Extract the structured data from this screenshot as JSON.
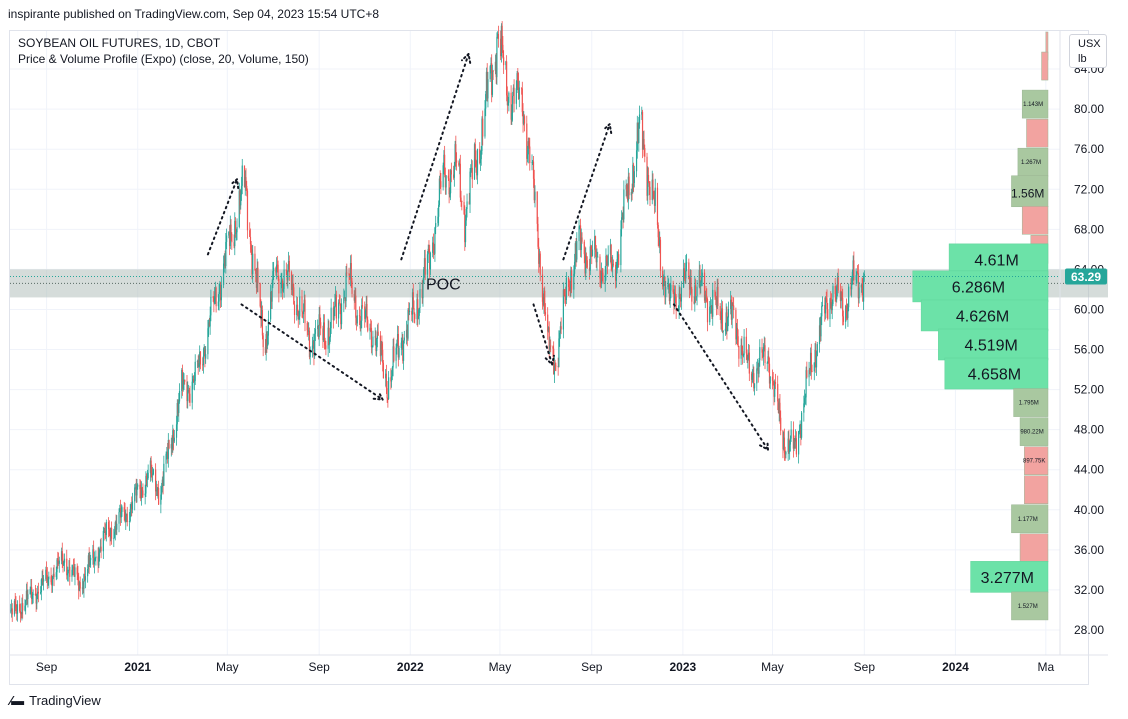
{
  "header": {
    "attribution": "inspirante published on TradingView.com, Sep 04, 2023 15:54 UTC+8"
  },
  "legend": {
    "symbol": "SOYBEAN OIL FUTURES, 1D, CBOT",
    "indicator": "Price & Volume Profile (Expo) (close, 20, Volume, 150)"
  },
  "price_scale": {
    "unit_line1": "USX",
    "unit_line2": "lb"
  },
  "footer": {
    "brand": "TradingView"
  },
  "colors": {
    "up_candle": "#26a69a",
    "down_candle": "#ef5350",
    "poc_band": "#b2bfbc",
    "vp_green": "#6ce2a8",
    "vp_gray_green": "#a9c8a0",
    "vp_red": "#f2a3a0",
    "last_price_badge": "#26a69a",
    "grid": "#f0f3fa"
  },
  "chart_data": {
    "type": "candlestick",
    "y_ticks": [
      "84.00",
      "80.00",
      "76.00",
      "72.00",
      "68.00",
      "64.00",
      "60.00",
      "56.00",
      "52.00",
      "48.00",
      "44.00",
      "40.00",
      "36.00",
      "32.00",
      "28.00"
    ],
    "x_ticks": [
      {
        "label": "Sep",
        "bold": false,
        "d": "2020-09-01"
      },
      {
        "label": "2021",
        "bold": true,
        "d": "2021-01-01"
      },
      {
        "label": "May",
        "bold": false,
        "d": "2021-05-01"
      },
      {
        "label": "Sep",
        "bold": false,
        "d": "2021-09-01"
      },
      {
        "label": "2022",
        "bold": true,
        "d": "2022-01-01"
      },
      {
        "label": "May",
        "bold": false,
        "d": "2022-05-01"
      },
      {
        "label": "Sep",
        "bold": false,
        "d": "2022-09-01"
      },
      {
        "label": "2023",
        "bold": true,
        "d": "2023-01-01"
      },
      {
        "label": "May",
        "bold": false,
        "d": "2023-05-01"
      },
      {
        "label": "Sep",
        "bold": false,
        "d": "2023-09-01"
      },
      {
        "label": "2024",
        "bold": true,
        "d": "2024-01-01"
      },
      {
        "label": "Ma",
        "bold": false,
        "d": "2024-05-01"
      }
    ],
    "ylim": [
      25.5,
      87.8
    ],
    "xlim": [
      "2020-07-14",
      "2024-05-20"
    ],
    "last_price": "63.29",
    "poc": {
      "label": "POC",
      "low": 61.2,
      "high": 64.0,
      "price": 62.6
    },
    "price_path": [
      [
        "2020-07-15",
        29.5
      ],
      [
        "2020-08-20",
        32.0
      ],
      [
        "2020-09-25",
        35.0
      ],
      [
        "2020-10-15",
        32.5
      ],
      [
        "2020-11-20",
        37.5
      ],
      [
        "2020-12-20",
        40.0
      ],
      [
        "2021-01-15",
        43.5
      ],
      [
        "2021-02-01",
        42.0
      ],
      [
        "2021-03-01",
        52.0
      ],
      [
        "2021-03-20",
        53.0
      ],
      [
        "2021-04-15",
        61.0
      ],
      [
        "2021-05-10",
        68.5
      ],
      [
        "2021-05-25",
        72.5
      ],
      [
        "2021-06-05",
        64.5
      ],
      [
        "2021-06-20",
        56.5
      ],
      [
        "2021-07-05",
        64.0
      ],
      [
        "2021-07-25",
        62.5
      ],
      [
        "2021-08-20",
        57.0
      ],
      [
        "2021-09-15",
        58.0
      ],
      [
        "2021-10-10",
        63.0
      ],
      [
        "2021-10-25",
        59.5
      ],
      [
        "2021-11-15",
        57.5
      ],
      [
        "2021-12-01",
        52.5
      ],
      [
        "2021-12-20",
        57.0
      ],
      [
        "2022-01-10",
        60.5
      ],
      [
        "2022-01-25",
        64.5
      ],
      [
        "2022-02-15",
        73.5
      ],
      [
        "2022-03-05",
        74.0
      ],
      [
        "2022-03-15",
        69.5
      ],
      [
        "2022-04-05",
        77.0
      ],
      [
        "2022-04-28",
        87.5
      ],
      [
        "2022-05-10",
        82.0
      ],
      [
        "2022-06-01",
        80.5
      ],
      [
        "2022-06-12",
        74.0
      ],
      [
        "2022-06-20",
        68.0
      ],
      [
        "2022-07-05",
        56.0
      ],
      [
        "2022-07-15",
        55.0
      ],
      [
        "2022-08-01",
        63.0
      ],
      [
        "2022-08-15",
        66.5
      ],
      [
        "2022-09-10",
        64.5
      ],
      [
        "2022-10-01",
        64.0
      ],
      [
        "2022-10-15",
        70.0
      ],
      [
        "2022-11-05",
        78.0
      ],
      [
        "2022-11-20",
        72.0
      ],
      [
        "2022-12-05",
        64.0
      ],
      [
        "2022-12-15",
        60.5
      ],
      [
        "2023-01-05",
        63.0
      ],
      [
        "2023-02-01",
        61.5
      ],
      [
        "2023-02-20",
        59.5
      ],
      [
        "2023-03-10",
        59.0
      ],
      [
        "2023-04-01",
        53.5
      ],
      [
        "2023-04-25",
        55.5
      ],
      [
        "2023-05-15",
        47.0
      ],
      [
        "2023-05-31",
        46.0
      ],
      [
        "2023-06-15",
        52.0
      ],
      [
        "2023-07-05",
        58.5
      ],
      [
        "2023-07-20",
        62.0
      ],
      [
        "2023-08-05",
        60.0
      ],
      [
        "2023-08-15",
        62.5
      ],
      [
        "2023-09-01",
        63.29
      ]
    ],
    "annotations": [
      {
        "name": "arrow-rally-2021",
        "from": [
          "2021-04-05",
          65.5
        ],
        "to": [
          "2021-05-14",
          73.0
        ]
      },
      {
        "name": "arrow-decline-2021",
        "from": [
          "2021-05-20",
          60.5
        ],
        "to": [
          "2021-11-25",
          51.0
        ]
      },
      {
        "name": "arrow-rally-2022",
        "from": [
          "2021-12-20",
          65.0
        ],
        "to": [
          "2022-03-20",
          85.5
        ]
      },
      {
        "name": "arrow-drop-2022",
        "from": [
          "2022-06-15",
          60.5
        ],
        "to": [
          "2022-07-10",
          54.5
        ]
      },
      {
        "name": "arrow-bounce-2022",
        "from": [
          "2022-07-25",
          65.0
        ],
        "to": [
          "2022-09-25",
          78.5
        ]
      },
      {
        "name": "arrow-decline-2023",
        "from": [
          "2022-12-20",
          60.5
        ],
        "to": [
          "2023-04-25",
          46.0
        ]
      }
    ],
    "volume_profile": [
      {
        "price": 86.3,
        "label": "",
        "color": "red",
        "widthScale": 0.1
      },
      {
        "price": 84.3,
        "label": "",
        "color": "red",
        "widthScale": 0.3
      },
      {
        "price": 80.5,
        "label": "1.143M",
        "color": "graygreen",
        "widthScale": 1.2,
        "small": true
      },
      {
        "price": 77.6,
        "label": "",
        "color": "red",
        "widthScale": 1.0
      },
      {
        "price": 74.7,
        "label": "1.267M",
        "color": "graygreen",
        "widthScale": 1.4,
        "small": true
      },
      {
        "price": 71.8,
        "label": "1.56M",
        "color": "graygreen",
        "widthScale": 1.7
      },
      {
        "price": 68.9,
        "label": "",
        "color": "red",
        "widthScale": 1.2
      },
      {
        "price": 66.0,
        "label": "",
        "color": "red",
        "widthScale": 0.8
      },
      {
        "price": 65.0,
        "label": "4.61M",
        "color": "green",
        "widthScale": 4.6
      },
      {
        "price": 62.3,
        "label": "6.286M",
        "color": "green",
        "widthScale": 6.29
      },
      {
        "price": 59.4,
        "label": "4.626M",
        "color": "green",
        "widthScale": 5.9
      },
      {
        "price": 56.5,
        "label": "4.519M",
        "color": "green",
        "widthScale": 5.1
      },
      {
        "price": 53.6,
        "label": "4.658M",
        "color": "green",
        "widthScale": 4.8
      },
      {
        "price": 50.7,
        "label": "1.795M",
        "color": "graygreen",
        "widthScale": 1.6,
        "small": true
      },
      {
        "price": 47.8,
        "label": "980.22M",
        "color": "graygreen",
        "widthScale": 1.3,
        "small": true
      },
      {
        "price": 44.9,
        "label": "897.75K",
        "color": "red",
        "widthScale": 1.1,
        "small": true
      },
      {
        "price": 42.0,
        "label": "",
        "color": "red",
        "widthScale": 1.1
      },
      {
        "price": 39.1,
        "label": "1.177M",
        "color": "graygreen",
        "widthScale": 1.7,
        "small": true
      },
      {
        "price": 36.2,
        "label": "",
        "color": "red",
        "widthScale": 1.3
      },
      {
        "price": 33.3,
        "label": "3.277M",
        "color": "green",
        "widthScale": 3.6
      },
      {
        "price": 30.4,
        "label": "1.527M",
        "color": "graygreen",
        "widthScale": 1.7,
        "small": true
      }
    ]
  }
}
